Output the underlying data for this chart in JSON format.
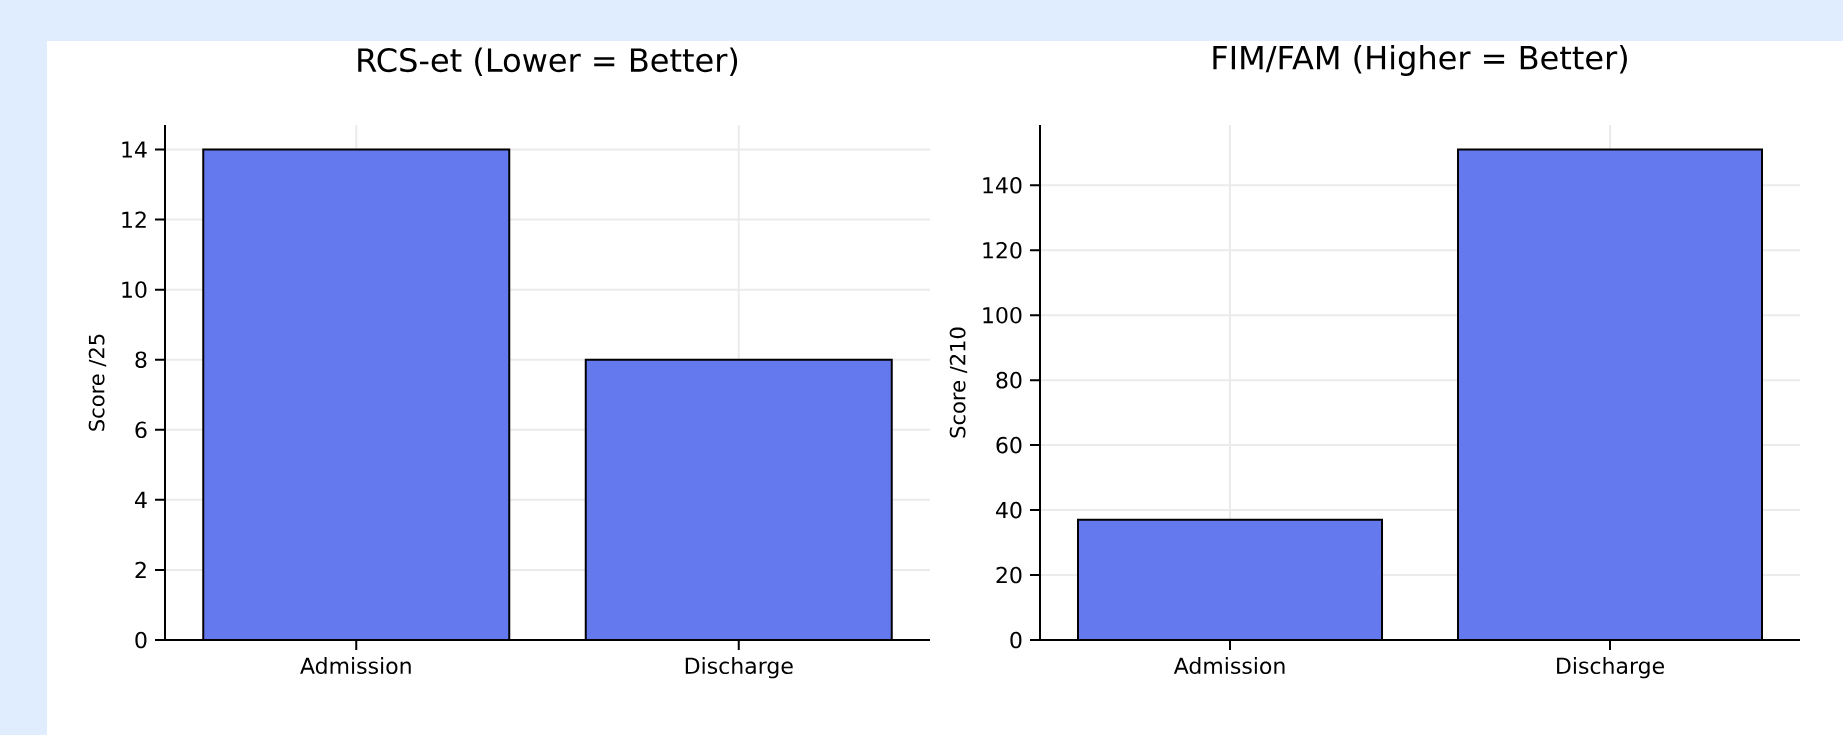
{
  "chart_data": [
    {
      "type": "bar",
      "title": "RCS-et (Lower = Better)",
      "ylabel": "Score /25",
      "categories": [
        "Admission",
        "Discharge"
      ],
      "values": [
        14,
        8
      ],
      "color": "#6479ee",
      "ylim": [
        0,
        14.7
      ],
      "yticks": [
        0,
        2,
        4,
        6,
        8,
        10,
        12,
        14
      ],
      "grid": true
    },
    {
      "type": "bar",
      "title": "FIM/FAM (Higher = Better)",
      "ylabel": "Score /210",
      "categories": [
        "Admission",
        "Discharge"
      ],
      "values": [
        37,
        151
      ],
      "color": "#6479ee",
      "ylim": [
        0,
        158.55
      ],
      "yticks": [
        0,
        20,
        40,
        60,
        80,
        100,
        120,
        140
      ],
      "grid": true
    }
  ]
}
